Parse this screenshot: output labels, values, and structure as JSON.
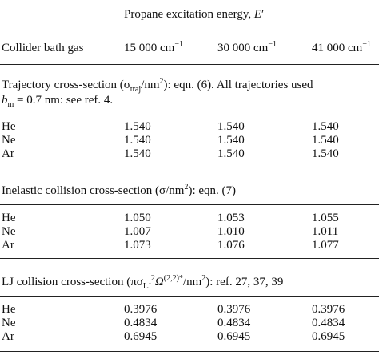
{
  "header": {
    "group_title": [
      "Propane excitation energy, ",
      "E",
      "′"
    ],
    "row_header": "Collider bath gas",
    "columns": [
      [
        "15 000 cm",
        "−1"
      ],
      [
        "30 000 cm",
        "−1"
      ],
      [
        "41 000 cm",
        "−1"
      ]
    ]
  },
  "sections": [
    {
      "title": [
        "Trajectory cross-section (σ",
        "traj",
        "/nm",
        "2",
        "): eqn. (6). All trajectories used",
        "b",
        "m",
        " = 0.7 nm: see ref. 4."
      ],
      "rows": [
        [
          "He",
          "1.540",
          "1.540",
          "1.540"
        ],
        [
          "Ne",
          "1.540",
          "1.540",
          "1.540"
        ],
        [
          "Ar",
          "1.540",
          "1.540",
          "1.540"
        ]
      ]
    },
    {
      "title": [
        "Inelastic collision cross-section (σ/nm",
        "2",
        "): eqn. (7)"
      ],
      "rows": [
        [
          "He",
          "1.050",
          "1.053",
          "1.055"
        ],
        [
          "Ne",
          "1.007",
          "1.010",
          "1.011"
        ],
        [
          "Ar",
          "1.073",
          "1.076",
          "1.077"
        ]
      ]
    },
    {
      "title": [
        "LJ collision cross-section (πσ",
        "LJ",
        "2",
        "Ω",
        "(2,2)*",
        "/nm",
        "2",
        "): ref. 27, 37, 39"
      ],
      "rows": [
        [
          "He",
          "0.3976",
          "0.3976",
          "0.3976"
        ],
        [
          "Ne",
          "0.4834",
          "0.4834",
          "0.4834"
        ],
        [
          "Ar",
          "0.6945",
          "0.6945",
          "0.6945"
        ]
      ]
    }
  ]
}
